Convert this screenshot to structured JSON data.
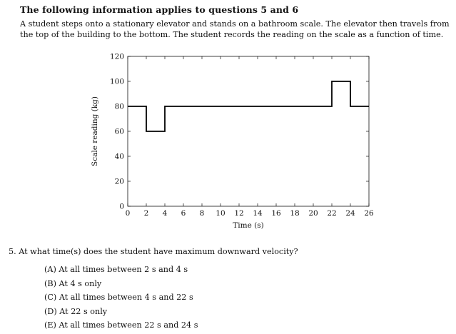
{
  "heading": "The following information applies to questions 5 and 6",
  "intro": "A student steps onto a stationary elevator and stands on a bathroom scale. The elevator then travels from the top of the building to the bottom. The student records the reading on the scale as a function of time.",
  "chart_data": {
    "type": "line",
    "xlabel": "Time (s)",
    "ylabel": "Scale reading (kg)",
    "xlim": [
      0,
      26
    ],
    "ylim": [
      0,
      120
    ],
    "xticks": [
      0,
      2,
      4,
      6,
      8,
      10,
      12,
      14,
      16,
      18,
      20,
      22,
      24,
      26
    ],
    "yticks": [
      0,
      20,
      40,
      60,
      80,
      100,
      120
    ],
    "grid": false,
    "series": [
      {
        "x": [
          0,
          2,
          2,
          4,
          4,
          22,
          22,
          24,
          24,
          26
        ],
        "y": [
          80,
          80,
          60,
          60,
          80,
          80,
          100,
          100,
          80,
          80
        ]
      }
    ]
  },
  "question": {
    "text": "5.  At what time(s) does the student have maximum downward velocity?",
    "options": [
      "(A)  At all times between 2 s and 4 s",
      "(B)  At 4 s only",
      "(C)  At all times between 4 s and 22 s",
      "(D)  At 22 s only",
      "(E)  At all times between 22 s and 24 s"
    ]
  }
}
